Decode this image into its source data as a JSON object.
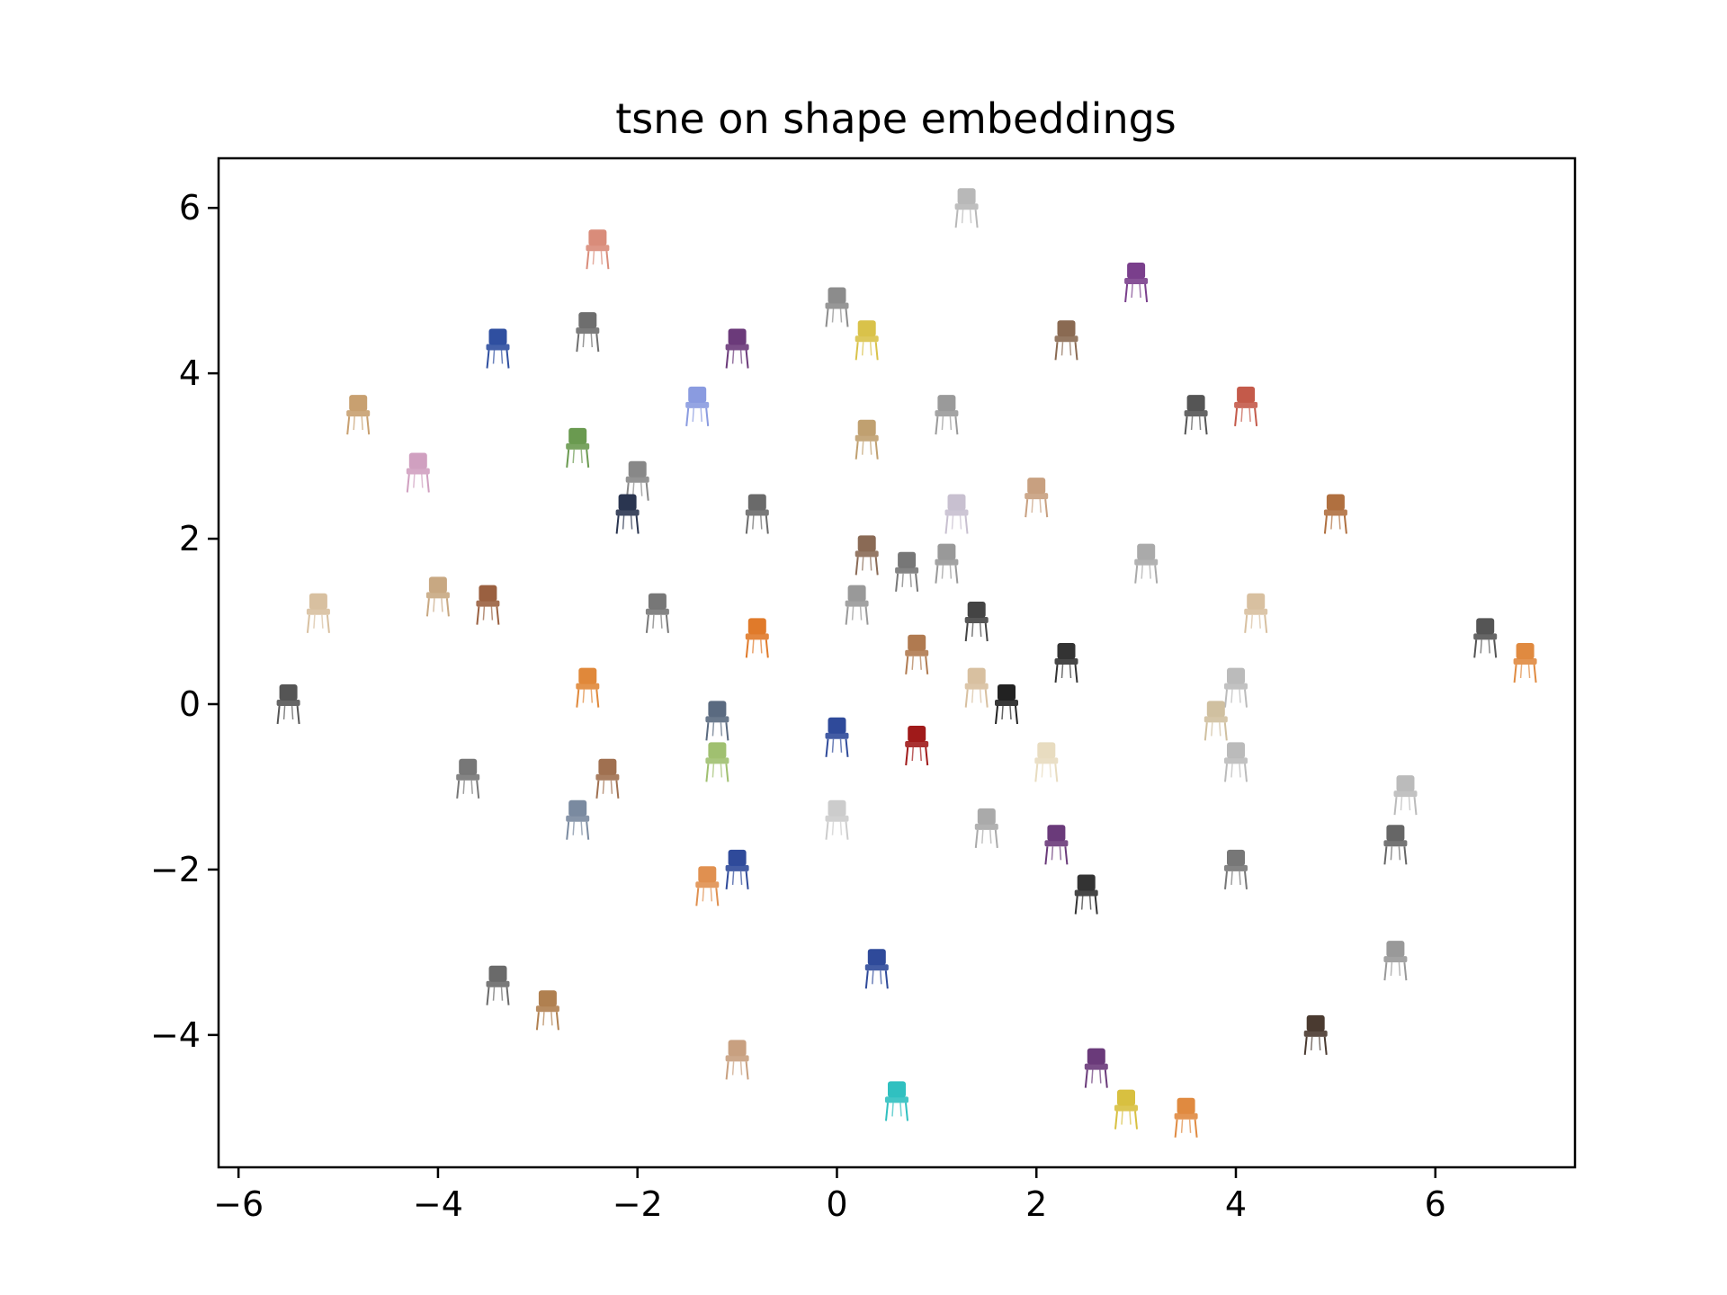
{
  "chart_data": {
    "type": "scatter",
    "title": "tsne on shape embeddings",
    "xlabel": "",
    "ylabel": "",
    "xlim": [
      -6.2,
      7.4
    ],
    "ylim": [
      -5.6,
      6.6
    ],
    "xticks": [
      -6,
      -4,
      -2,
      0,
      2,
      4,
      6
    ],
    "yticks": [
      -4,
      -2,
      0,
      2,
      4,
      6
    ],
    "xtick_labels": [
      "−6",
      "−4",
      "−2",
      "0",
      "2",
      "4",
      "6"
    ],
    "ytick_labels": [
      "−4",
      "−2",
      "0",
      "2",
      "4",
      "6"
    ],
    "grid": false,
    "marker": "chair thumbnail images",
    "points": [
      {
        "x": 1.3,
        "y": 6.0,
        "color": "#b8b8b8"
      },
      {
        "x": -2.4,
        "y": 5.5,
        "color": "#d98c7a"
      },
      {
        "x": 3.0,
        "y": 5.1,
        "color": "#7a3f8c"
      },
      {
        "x": -2.5,
        "y": 4.5,
        "color": "#6e6e6e"
      },
      {
        "x": 0.0,
        "y": 4.8,
        "color": "#8c8c8c"
      },
      {
        "x": 0.3,
        "y": 4.4,
        "color": "#d9c24a"
      },
      {
        "x": 2.3,
        "y": 4.4,
        "color": "#8a6a52"
      },
      {
        "x": -3.4,
        "y": 4.3,
        "color": "#2f4fa0"
      },
      {
        "x": -1.0,
        "y": 4.3,
        "color": "#6b3a7a"
      },
      {
        "x": 3.6,
        "y": 3.5,
        "color": "#555555"
      },
      {
        "x": 4.1,
        "y": 3.6,
        "color": "#c45a4a"
      },
      {
        "x": -4.8,
        "y": 3.5,
        "color": "#c8a070"
      },
      {
        "x": -1.4,
        "y": 3.6,
        "color": "#8a9be0"
      },
      {
        "x": 1.1,
        "y": 3.5,
        "color": "#9a9a9a"
      },
      {
        "x": 0.3,
        "y": 3.2,
        "color": "#c0a070"
      },
      {
        "x": -2.6,
        "y": 3.1,
        "color": "#6a9a50"
      },
      {
        "x": -4.2,
        "y": 2.8,
        "color": "#d0a0c0"
      },
      {
        "x": -2.0,
        "y": 2.7,
        "color": "#888888"
      },
      {
        "x": -0.8,
        "y": 2.3,
        "color": "#6a6a6a"
      },
      {
        "x": -2.1,
        "y": 2.3,
        "color": "#2a3550"
      },
      {
        "x": 2.0,
        "y": 2.5,
        "color": "#c8a080"
      },
      {
        "x": 1.2,
        "y": 2.3,
        "color": "#c8c0d0"
      },
      {
        "x": 5.0,
        "y": 2.3,
        "color": "#b07040"
      },
      {
        "x": 0.3,
        "y": 1.8,
        "color": "#8a6a55"
      },
      {
        "x": 0.7,
        "y": 1.6,
        "color": "#777777"
      },
      {
        "x": 1.1,
        "y": 1.7,
        "color": "#999999"
      },
      {
        "x": 3.1,
        "y": 1.7,
        "color": "#aaaaaa"
      },
      {
        "x": -5.2,
        "y": 1.1,
        "color": "#d8c0a0"
      },
      {
        "x": -4.0,
        "y": 1.3,
        "color": "#c8a882"
      },
      {
        "x": -3.5,
        "y": 1.2,
        "color": "#9a6040"
      },
      {
        "x": -1.8,
        "y": 1.1,
        "color": "#777777"
      },
      {
        "x": 0.2,
        "y": 1.2,
        "color": "#999999"
      },
      {
        "x": 1.4,
        "y": 1.0,
        "color": "#444444"
      },
      {
        "x": 4.2,
        "y": 1.1,
        "color": "#d8c0a0"
      },
      {
        "x": -0.8,
        "y": 0.8,
        "color": "#e07a2a"
      },
      {
        "x": 0.8,
        "y": 0.6,
        "color": "#b07a50"
      },
      {
        "x": 2.3,
        "y": 0.5,
        "color": "#333333"
      },
      {
        "x": 6.5,
        "y": 0.8,
        "color": "#555555"
      },
      {
        "x": 6.9,
        "y": 0.5,
        "color": "#e08a40"
      },
      {
        "x": -5.5,
        "y": 0.0,
        "color": "#555555"
      },
      {
        "x": -2.5,
        "y": 0.2,
        "color": "#e0883a"
      },
      {
        "x": 1.4,
        "y": 0.2,
        "color": "#d8c0a0"
      },
      {
        "x": 1.7,
        "y": 0.0,
        "color": "#222222"
      },
      {
        "x": 4.0,
        "y": 0.2,
        "color": "#bbbbbb"
      },
      {
        "x": -1.2,
        "y": -0.2,
        "color": "#5a6a80"
      },
      {
        "x": 0.0,
        "y": -0.4,
        "color": "#2f4a9a"
      },
      {
        "x": 0.8,
        "y": -0.5,
        "color": "#a01a1a"
      },
      {
        "x": 3.8,
        "y": -0.2,
        "color": "#d0c0a0"
      },
      {
        "x": -1.2,
        "y": -0.7,
        "color": "#a0c070"
      },
      {
        "x": 2.1,
        "y": -0.7,
        "color": "#e8dcc0"
      },
      {
        "x": 4.0,
        "y": -0.7,
        "color": "#bbbbbb"
      },
      {
        "x": -3.7,
        "y": -0.9,
        "color": "#777777"
      },
      {
        "x": -2.3,
        "y": -0.9,
        "color": "#a07050"
      },
      {
        "x": 5.7,
        "y": -1.1,
        "color": "#bbbbbb"
      },
      {
        "x": -2.6,
        "y": -1.4,
        "color": "#7a8aa0"
      },
      {
        "x": 0.0,
        "y": -1.4,
        "color": "#cccccc"
      },
      {
        "x": 1.5,
        "y": -1.5,
        "color": "#aaaaaa"
      },
      {
        "x": 2.2,
        "y": -1.7,
        "color": "#6a3a7a"
      },
      {
        "x": 5.6,
        "y": -1.7,
        "color": "#666666"
      },
      {
        "x": -1.0,
        "y": -2.0,
        "color": "#2f4a9a"
      },
      {
        "x": 4.0,
        "y": -2.0,
        "color": "#777777"
      },
      {
        "x": -1.3,
        "y": -2.2,
        "color": "#e09050"
      },
      {
        "x": 2.5,
        "y": -2.3,
        "color": "#333333"
      },
      {
        "x": 0.4,
        "y": -3.2,
        "color": "#2f4a9a"
      },
      {
        "x": 5.6,
        "y": -3.1,
        "color": "#999999"
      },
      {
        "x": -3.4,
        "y": -3.4,
        "color": "#6a6a6a"
      },
      {
        "x": -2.9,
        "y": -3.7,
        "color": "#b08050"
      },
      {
        "x": 4.8,
        "y": -4.0,
        "color": "#4a3a30"
      },
      {
        "x": -1.0,
        "y": -4.3,
        "color": "#c8a080"
      },
      {
        "x": 2.6,
        "y": -4.4,
        "color": "#6a3a7a"
      },
      {
        "x": 0.6,
        "y": -4.8,
        "color": "#30c0c0"
      },
      {
        "x": 2.9,
        "y": -4.9,
        "color": "#d8c040"
      },
      {
        "x": 3.5,
        "y": -5.0,
        "color": "#e08a40"
      }
    ]
  }
}
